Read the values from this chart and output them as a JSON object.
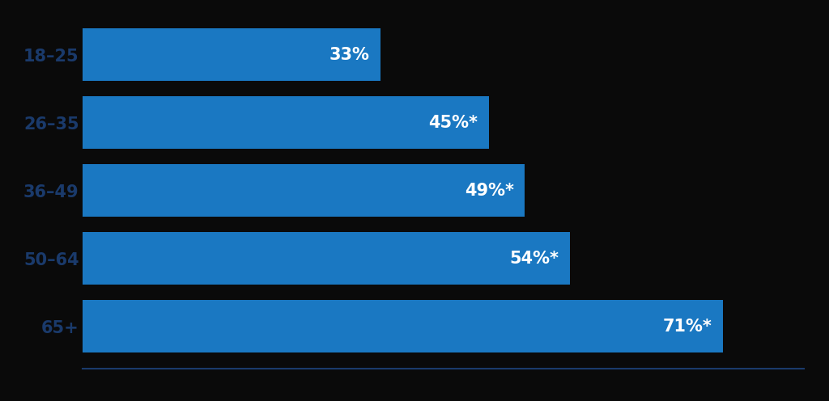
{
  "categories": [
    "18–25",
    "26–35",
    "36–49",
    "50–64",
    "65+"
  ],
  "values": [
    33,
    45,
    49,
    54,
    71
  ],
  "labels": [
    "33%",
    "45%*",
    "49%*",
    "54%*",
    "71%*"
  ],
  "bar_color": "#1a78c2",
  "background_color": "#0a0a0a",
  "text_color": "#ffffff",
  "label_color": "#1a3a6b",
  "bar_height": 0.78,
  "xlim": [
    0,
    80
  ],
  "label_fontsize": 15,
  "tick_fontsize": 15,
  "figsize": [
    10.24,
    4.96
  ],
  "dpi": 100
}
